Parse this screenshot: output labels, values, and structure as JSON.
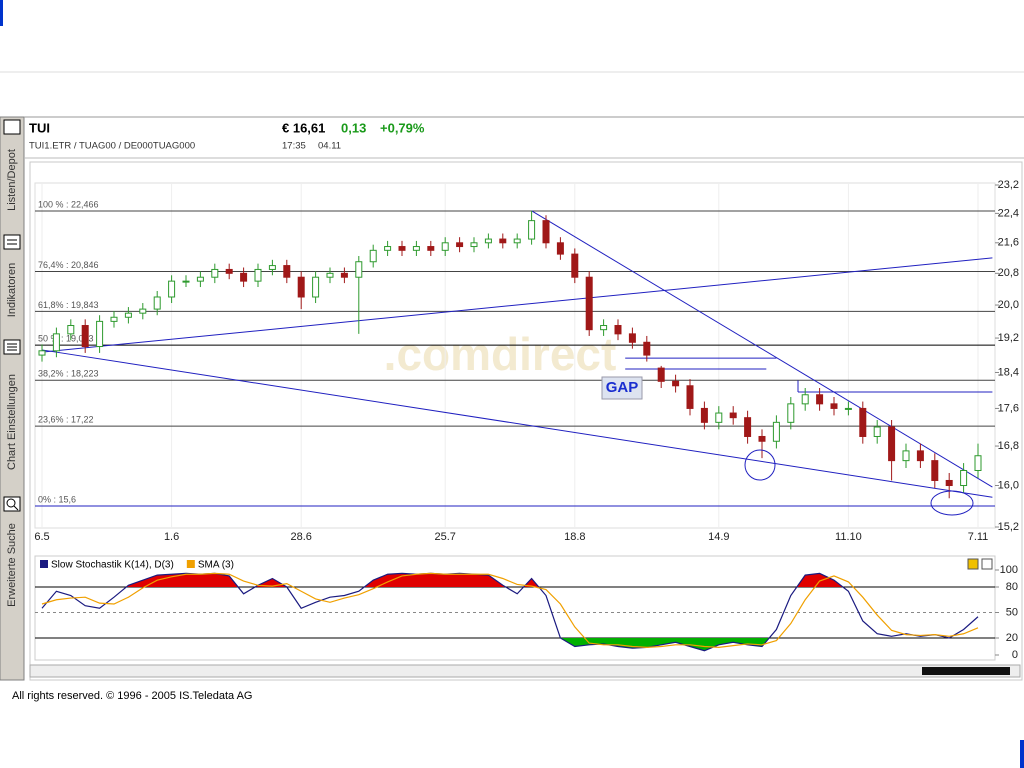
{
  "header": {
    "name": "TUI",
    "codes": "TUI1.ETR / TUAG00 / DE000TUAG000",
    "price": "€ 16,61",
    "change": "0,13",
    "change_pct": "+0,79%",
    "time": "17:35",
    "date": "04.11"
  },
  "sidebar": {
    "tabs": [
      "Listen/Depot",
      "Indikatoren",
      "Chart Einstellungen",
      "Erweiterte Suche"
    ]
  },
  "watermark": ".comdirect",
  "annotations": {
    "gap": "GAP"
  },
  "footer": "All rights reserved. © 1996 - 2005 IS.Teledata AG",
  "chart_data": [
    {
      "type": "candlestick",
      "log_scale": true,
      "grid": true,
      "categories": [
        "6.5",
        null,
        null,
        null,
        null,
        null,
        null,
        null,
        null,
        "1.6",
        null,
        null,
        null,
        null,
        null,
        null,
        null,
        null,
        "28.6",
        null,
        null,
        null,
        null,
        null,
        null,
        null,
        null,
        null,
        "25.7",
        null,
        null,
        null,
        null,
        null,
        null,
        null,
        null,
        "18.8",
        null,
        null,
        null,
        null,
        null,
        null,
        null,
        null,
        null,
        "14.9",
        null,
        null,
        null,
        null,
        null,
        null,
        null,
        null,
        "11.10",
        null,
        null,
        null,
        null,
        null,
        null,
        null,
        null,
        "7.11"
      ],
      "open": [
        18.8,
        18.9,
        19.3,
        19.5,
        19.0,
        19.6,
        19.7,
        19.8,
        19.9,
        20.2,
        20.6,
        20.6,
        20.7,
        20.9,
        20.8,
        20.6,
        20.9,
        21.0,
        20.7,
        20.2,
        20.7,
        20.8,
        20.7,
        21.1,
        21.4,
        21.5,
        21.4,
        21.5,
        21.4,
        21.6,
        21.5,
        21.6,
        21.7,
        21.6,
        21.7,
        22.2,
        21.6,
        21.3,
        20.7,
        19.4,
        19.5,
        19.3,
        19.1,
        18.5,
        18.2,
        18.1,
        17.6,
        17.3,
        17.5,
        17.4,
        17.0,
        16.9,
        17.3,
        17.7,
        17.9,
        17.7,
        17.6,
        17.6,
        17.0,
        17.2,
        16.5,
        16.7,
        16.5,
        16.1,
        16.0,
        16.3
      ],
      "high": [
        19.05,
        19.45,
        19.65,
        19.65,
        19.75,
        19.85,
        19.95,
        20.05,
        20.35,
        20.75,
        20.75,
        20.85,
        21.05,
        21.05,
        20.95,
        21.05,
        21.15,
        21.15,
        20.85,
        20.85,
        20.95,
        20.95,
        21.25,
        21.55,
        21.65,
        21.65,
        21.65,
        21.65,
        21.75,
        21.75,
        21.75,
        21.85,
        21.85,
        21.85,
        22.47,
        22.35,
        21.75,
        21.45,
        20.85,
        19.65,
        19.65,
        19.45,
        19.25,
        18.55,
        18.35,
        18.25,
        17.75,
        17.65,
        17.65,
        17.55,
        17.15,
        17.45,
        17.85,
        18.05,
        18.05,
        17.85,
        17.75,
        17.75,
        17.35,
        17.35,
        16.85,
        16.85,
        16.65,
        16.25,
        16.45,
        16.85
      ],
      "low": [
        18.65,
        18.75,
        19.15,
        18.85,
        18.85,
        19.45,
        19.55,
        19.65,
        19.75,
        20.05,
        20.45,
        20.45,
        20.55,
        20.65,
        20.45,
        20.45,
        20.75,
        20.55,
        19.9,
        20.05,
        20.55,
        20.55,
        19.3,
        20.95,
        21.25,
        21.25,
        21.25,
        21.25,
        21.25,
        21.35,
        21.35,
        21.45,
        21.45,
        21.45,
        21.55,
        21.45,
        21.15,
        20.55,
        19.25,
        19.25,
        19.15,
        18.95,
        18.65,
        18.05,
        17.95,
        17.45,
        17.15,
        17.15,
        17.25,
        16.85,
        16.55,
        16.75,
        17.15,
        17.55,
        17.55,
        17.45,
        17.45,
        16.85,
        16.85,
        16.1,
        16.35,
        16.35,
        15.95,
        15.75,
        15.85,
        16.15
      ],
      "close": [
        18.9,
        19.3,
        19.5,
        19.0,
        19.6,
        19.7,
        19.8,
        19.9,
        20.2,
        20.6,
        20.6,
        20.7,
        20.9,
        20.8,
        20.6,
        20.9,
        21.0,
        20.7,
        20.2,
        20.7,
        20.8,
        20.7,
        21.1,
        21.4,
        21.5,
        21.4,
        21.5,
        21.4,
        21.6,
        21.5,
        21.6,
        21.7,
        21.6,
        21.7,
        22.2,
        21.6,
        21.3,
        20.7,
        19.4,
        19.5,
        19.3,
        19.1,
        18.8,
        18.2,
        18.1,
        17.6,
        17.3,
        17.5,
        17.4,
        17.0,
        16.9,
        17.3,
        17.7,
        17.9,
        17.7,
        17.6,
        17.6,
        17.0,
        17.2,
        16.5,
        16.7,
        16.5,
        16.1,
        16.0,
        16.3,
        16.6
      ],
      "up_color": "#2e9a2e",
      "down_color": "#a01818",
      "ylim": [
        15.2,
        23.2
      ],
      "yticks": [
        {
          "value": 15.2,
          "label": "15,2"
        },
        {
          "value": 16.0,
          "label": "16,0"
        },
        {
          "value": 16.8,
          "label": "16,8"
        },
        {
          "value": 17.6,
          "label": "17,6"
        },
        {
          "value": 18.4,
          "label": "18,4"
        },
        {
          "value": 19.2,
          "label": "19,2"
        },
        {
          "value": 20.0,
          "label": "20,0"
        },
        {
          "value": 20.8,
          "label": "20,8"
        },
        {
          "value": 21.6,
          "label": "21,6"
        },
        {
          "value": 22.4,
          "label": "22,4"
        },
        {
          "value": 23.2,
          "label": "23,2"
        }
      ],
      "levels": [
        {
          "value": 22.466,
          "label": "100 % : 22,466",
          "color": "#444444"
        },
        {
          "value": 20.846,
          "label": "76,4% : 20,846",
          "color": "#444444"
        },
        {
          "value": 19.843,
          "label": "61,8% : 19,843",
          "color": "#444444"
        },
        {
          "value": 19.033,
          "label": "50 % : 19,033",
          "color": "#000000"
        },
        {
          "value": 18.223,
          "label": "38,2% : 18,223",
          "color": "#444444"
        },
        {
          "value": 17.22,
          "label": "23,6% : 17,22",
          "color": "#444444"
        },
        {
          "value": 15.6,
          "label": "0% : 15,6",
          "color": "#2020c0"
        }
      ],
      "trendlines": [
        {
          "x": [
            0,
            66
          ],
          "y": [
            18.87,
            21.2
          ],
          "color": "#2020c0"
        },
        {
          "x": [
            0,
            66
          ],
          "y": [
            18.92,
            15.77
          ],
          "color": "#2020c0"
        },
        {
          "x": [
            34,
            66
          ],
          "y": [
            22.47,
            15.97
          ],
          "color": "#2020c0"
        },
        {
          "x": [
            40.5,
            51
          ],
          "y": [
            18.73,
            18.73
          ],
          "color": "#2020c0"
        },
        {
          "x": [
            40.5,
            50.3
          ],
          "y": [
            18.48,
            18.48
          ],
          "color": "#2020c0"
        },
        {
          "x": [
            52.5,
            66
          ],
          "y": [
            17.96,
            17.96
          ],
          "color": "#2020c0"
        },
        {
          "x": [
            52.5,
            52.5
          ],
          "y": [
            18.22,
            17.96
          ],
          "color": "#2020c0"
        }
      ]
    },
    {
      "type": "line",
      "series": [
        {
          "name": "Slow Stochastik K(14), D(3)",
          "color": "#1a1a80",
          "values": [
            55,
            75,
            70,
            58,
            55,
            68,
            82,
            88,
            94,
            95,
            96,
            95,
            96,
            93,
            72,
            82,
            90,
            80,
            55,
            62,
            68,
            70,
            75,
            88,
            95,
            96,
            95,
            96,
            95,
            96,
            95,
            94,
            82,
            72,
            90,
            70,
            20,
            10,
            12,
            13,
            10,
            8,
            9,
            12,
            15,
            10,
            5,
            12,
            15,
            12,
            10,
            30,
            70,
            94,
            96,
            88,
            75,
            40,
            25,
            22,
            25,
            22,
            24,
            20,
            30,
            45
          ]
        },
        {
          "name": "SMA (3)",
          "color": "#f0a000",
          "values": [
            60,
            65,
            67,
            68,
            61,
            60,
            68,
            79,
            88,
            92,
            95,
            95,
            96,
            95,
            87,
            82,
            81,
            84,
            75,
            66,
            62,
            67,
            71,
            78,
            86,
            93,
            95,
            96,
            95,
            95,
            95,
            95,
            90,
            83,
            81,
            77,
            60,
            33,
            14,
            12,
            12,
            10,
            9,
            10,
            12,
            12,
            10,
            9,
            11,
            13,
            12,
            17,
            37,
            65,
            87,
            93,
            86,
            68,
            47,
            29,
            24,
            23,
            24,
            22,
            25,
            32
          ]
        }
      ],
      "ylim": [
        0,
        100
      ],
      "yticks": [
        0,
        20,
        50,
        80,
        100
      ],
      "lines": [
        {
          "value": 80
        },
        {
          "value": 50,
          "dash": true
        },
        {
          "value": 20
        }
      ],
      "fill_above": 80,
      "fill_below": 20,
      "above_color": "#e00000",
      "below_color": "#00b000"
    }
  ]
}
